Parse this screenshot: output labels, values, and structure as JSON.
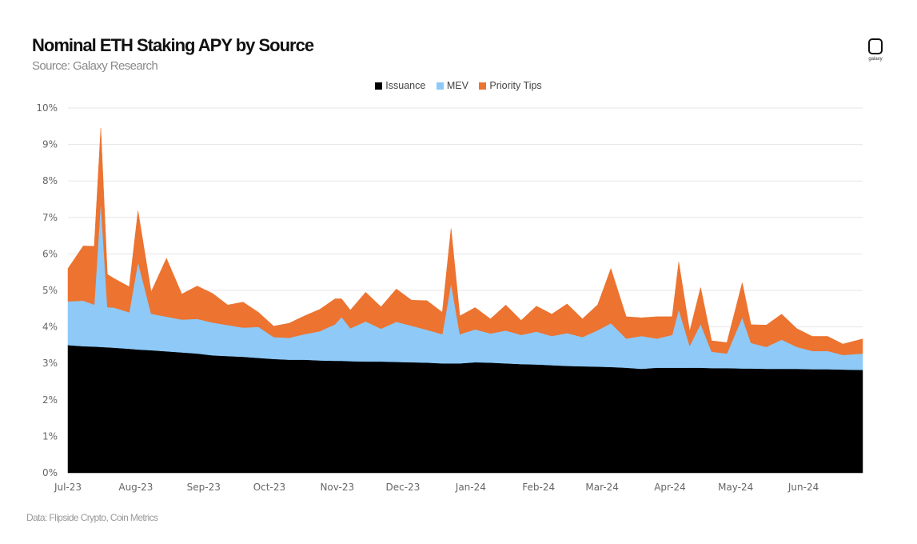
{
  "header": {
    "title": "Nominal ETH Staking APY by Source",
    "subtitle": "Source: Galaxy Research",
    "logo_text": "galaxy"
  },
  "footer": "Data: Flipside Crypto, Coin Metrics",
  "chart_data": {
    "type": "area",
    "stacked": true,
    "title": "Nominal ETH Staking APY by Source",
    "subtitle": "Source: Galaxy Research",
    "xlabel": "",
    "ylabel": "",
    "xlim": [
      "2023-07-01",
      "2024-06-28"
    ],
    "ylim": [
      0,
      10
    ],
    "grid": true,
    "legend_position": "top-center",
    "yticks": [
      0,
      1,
      2,
      3,
      4,
      5,
      6,
      7,
      8,
      9,
      10
    ],
    "ytick_labels": [
      "0%",
      "1%",
      "2%",
      "3%",
      "4%",
      "5%",
      "6%",
      "7%",
      "8%",
      "9%",
      "10%"
    ],
    "xticks": [
      "2023-07-01",
      "2023-08-01",
      "2023-09-01",
      "2023-10-01",
      "2023-11-01",
      "2023-12-01",
      "2024-01-01",
      "2024-02-01",
      "2024-03-01",
      "2024-04-01",
      "2024-05-01",
      "2024-06-01"
    ],
    "xtick_labels": [
      "Jul-23",
      "Aug-23",
      "Sep-23",
      "Oct-23",
      "Nov-23",
      "Dec-23",
      "Jan-24",
      "Feb-24",
      "Mar-24",
      "Apr-24",
      "May-24",
      "Jun-24"
    ],
    "x": [
      "2023-07-01",
      "2023-07-08",
      "2023-07-13",
      "2023-07-16",
      "2023-07-19",
      "2023-07-22",
      "2023-07-29",
      "2023-08-02",
      "2023-08-08",
      "2023-08-15",
      "2023-08-22",
      "2023-08-29",
      "2023-09-05",
      "2023-09-12",
      "2023-09-19",
      "2023-09-26",
      "2023-10-03",
      "2023-10-10",
      "2023-10-17",
      "2023-10-24",
      "2023-10-31",
      "2023-11-03",
      "2023-11-07",
      "2023-11-14",
      "2023-11-21",
      "2023-11-28",
      "2023-12-05",
      "2023-12-12",
      "2023-12-19",
      "2023-12-23",
      "2023-12-27",
      "2024-01-03",
      "2024-01-10",
      "2024-01-17",
      "2024-01-24",
      "2024-01-31",
      "2024-02-07",
      "2024-02-14",
      "2024-02-21",
      "2024-02-28",
      "2024-03-05",
      "2024-03-12",
      "2024-03-19",
      "2024-03-26",
      "2024-04-02",
      "2024-04-05",
      "2024-04-10",
      "2024-04-15",
      "2024-04-20",
      "2024-04-27",
      "2024-05-04",
      "2024-05-08",
      "2024-05-15",
      "2024-05-22",
      "2024-05-29",
      "2024-06-05",
      "2024-06-12",
      "2024-06-19",
      "2024-06-28"
    ],
    "series": [
      {
        "name": "Issuance",
        "color": "#000000",
        "values": [
          3.5,
          3.47,
          3.46,
          3.45,
          3.44,
          3.43,
          3.4,
          3.38,
          3.36,
          3.33,
          3.3,
          3.27,
          3.22,
          3.2,
          3.18,
          3.15,
          3.12,
          3.1,
          3.1,
          3.08,
          3.07,
          3.07,
          3.06,
          3.05,
          3.05,
          3.04,
          3.03,
          3.02,
          3.0,
          3.0,
          3.0,
          3.03,
          3.02,
          3.0,
          2.98,
          2.97,
          2.95,
          2.93,
          2.92,
          2.91,
          2.9,
          2.88,
          2.85,
          2.88,
          2.88,
          2.88,
          2.88,
          2.88,
          2.87,
          2.87,
          2.86,
          2.86,
          2.85,
          2.85,
          2.85,
          2.84,
          2.84,
          2.83,
          2.82
        ]
      },
      {
        "name": "MEV",
        "color": "#8ec9f7",
        "values": [
          1.2,
          1.25,
          1.15,
          4.0,
          1.1,
          1.1,
          1.0,
          2.4,
          1.0,
          0.95,
          0.9,
          0.95,
          0.9,
          0.85,
          0.8,
          0.85,
          0.6,
          0.6,
          0.7,
          0.8,
          1.0,
          1.2,
          0.9,
          1.1,
          0.9,
          1.1,
          1.0,
          0.9,
          0.8,
          2.2,
          0.8,
          0.9,
          0.8,
          0.9,
          0.8,
          0.9,
          0.8,
          0.9,
          0.8,
          1.0,
          1.2,
          0.8,
          0.9,
          0.8,
          0.9,
          1.6,
          0.6,
          1.2,
          0.45,
          0.4,
          1.4,
          0.7,
          0.6,
          0.8,
          0.6,
          0.5,
          0.5,
          0.4,
          0.45
        ]
      },
      {
        "name": "Priority Tips",
        "color": "#ec7330",
        "values": [
          0.9,
          1.5,
          1.6,
          2.0,
          0.9,
          0.8,
          0.7,
          1.4,
          0.6,
          1.6,
          0.7,
          0.9,
          0.8,
          0.55,
          0.7,
          0.4,
          0.3,
          0.4,
          0.5,
          0.6,
          0.7,
          0.5,
          0.5,
          0.8,
          0.6,
          0.9,
          0.7,
          0.8,
          0.6,
          1.5,
          0.5,
          0.6,
          0.4,
          0.7,
          0.4,
          0.7,
          0.6,
          0.8,
          0.5,
          0.7,
          1.5,
          0.6,
          0.5,
          0.6,
          0.5,
          1.3,
          0.4,
          1.0,
          0.3,
          0.3,
          0.95,
          0.5,
          0.6,
          0.7,
          0.5,
          0.4,
          0.4,
          0.3,
          0.4
        ]
      }
    ]
  }
}
